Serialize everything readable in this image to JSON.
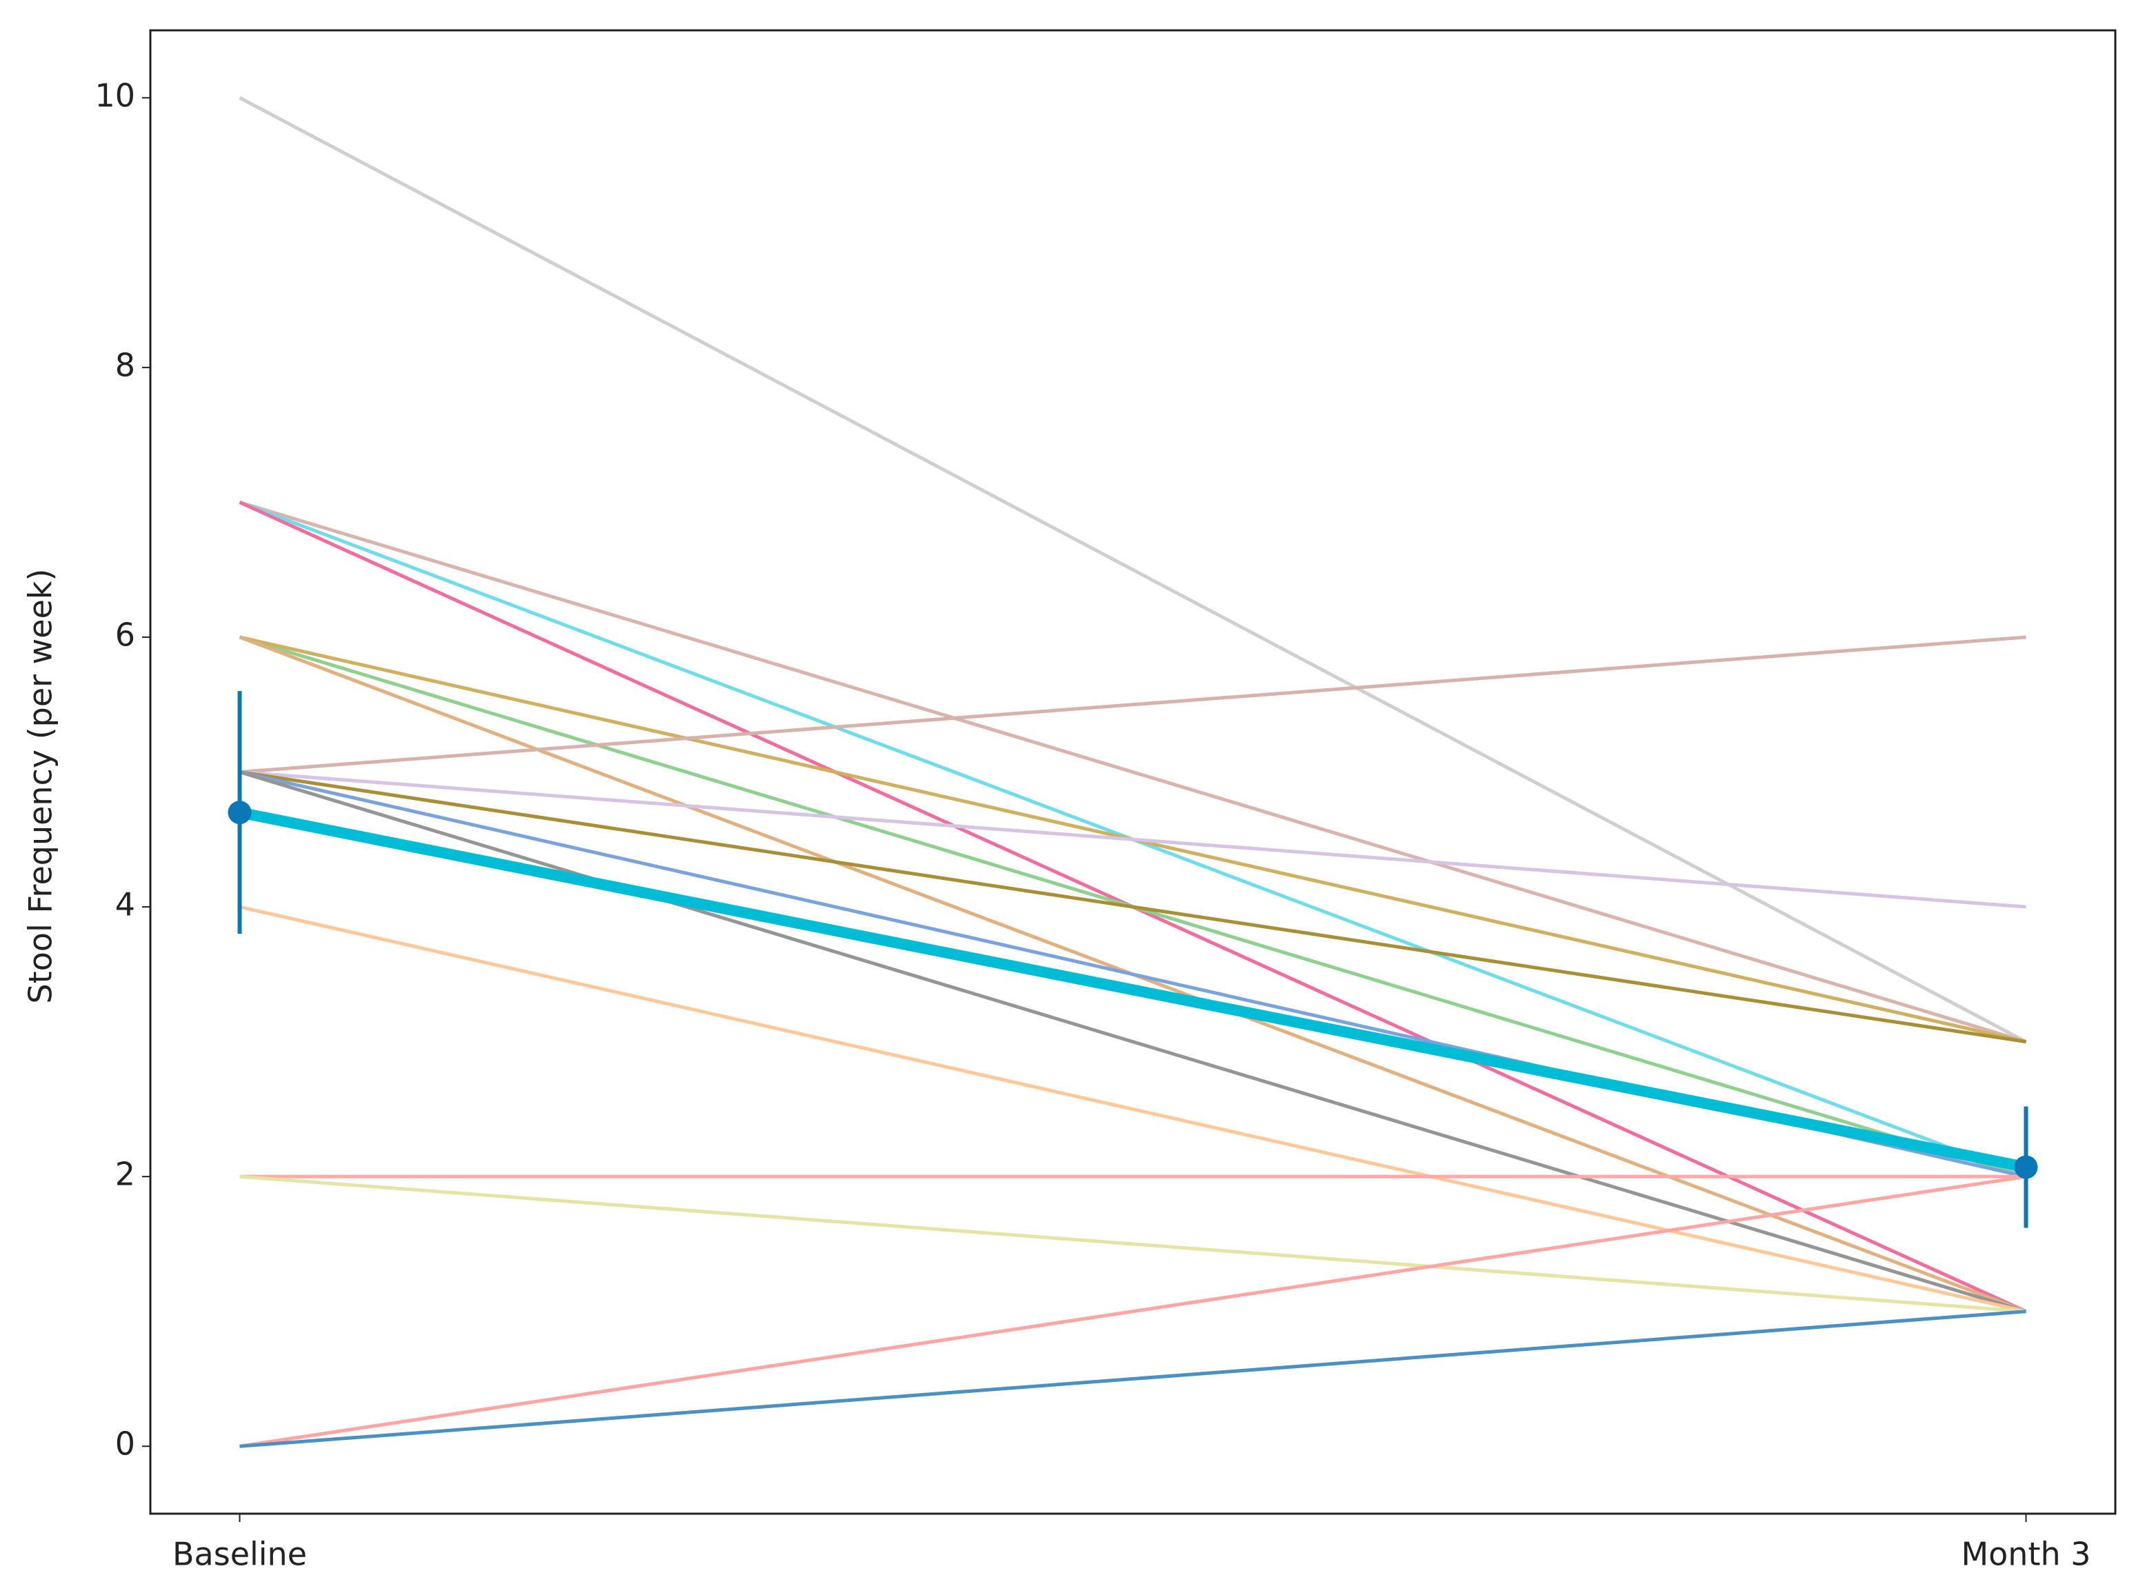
{
  "chart_data": {
    "type": "line",
    "y_label": "Stool Frequency (per week)",
    "categories": [
      "Baseline",
      "Month 3"
    ],
    "ylim": [
      -0.5,
      10.5
    ],
    "yticks": [
      0,
      2,
      4,
      6,
      8,
      10
    ],
    "series": [
      {
        "color": "#cfcfcf",
        "values": [
          10,
          3
        ]
      },
      {
        "color": "#d8b4ad",
        "values": [
          7,
          3
        ]
      },
      {
        "color": "#6fdcea",
        "values": [
          7,
          2
        ]
      },
      {
        "color": "#f26c9e",
        "values": [
          7,
          1
        ]
      },
      {
        "color": "#8fd08f",
        "values": [
          6,
          2
        ]
      },
      {
        "color": "#cfb05e",
        "values": [
          6,
          3
        ]
      },
      {
        "color": "#e2b07e",
        "values": [
          6,
          1
        ]
      },
      {
        "color": "#d6b2aa",
        "values": [
          5,
          6
        ]
      },
      {
        "color": "#d6c4e4",
        "values": [
          5,
          4
        ]
      },
      {
        "color": "#a88f35",
        "values": [
          5,
          3
        ]
      },
      {
        "color": "#79a3dc",
        "values": [
          5,
          2
        ]
      },
      {
        "color": "#959595",
        "values": [
          5,
          1
        ]
      },
      {
        "color": "#ffc898",
        "values": [
          4,
          1
        ]
      },
      {
        "color": "#ffaaa8",
        "values": [
          2,
          2
        ]
      },
      {
        "color": "#e4e4a4",
        "values": [
          2,
          1
        ]
      },
      {
        "color": "#ffa6a4",
        "values": [
          0,
          2
        ]
      },
      {
        "color": "#4a90c2",
        "values": [
          0,
          1
        ]
      },
      {
        "color": "#00bcd4",
        "values": [
          4.7,
          2.07
        ],
        "errors": [
          0.9,
          0.45
        ],
        "error_color": "#0a78b8"
      }
    ]
  }
}
